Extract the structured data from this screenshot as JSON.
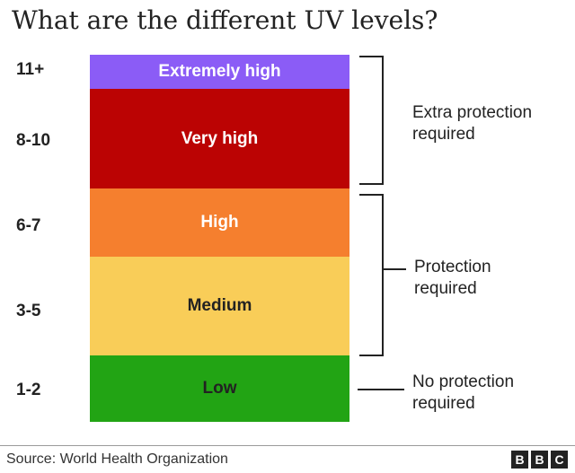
{
  "title": "What are the different UV levels?",
  "levels": [
    {
      "range": "11+",
      "label": "Extremely high",
      "color": "#8b5cf6"
    },
    {
      "range": "8-10",
      "label": "Very high",
      "color": "#bb0303"
    },
    {
      "range": "6-7",
      "label": "High",
      "color": "#f57f2e"
    },
    {
      "range": "3-5",
      "label": "Medium",
      "color": "#f9cd58"
    },
    {
      "range": "1-2",
      "label": "Low",
      "color": "#22a414"
    }
  ],
  "notes": {
    "extra": {
      "line1": "Extra protection",
      "line2": "required"
    },
    "protection": {
      "line1": "Protection",
      "line2": "required"
    },
    "none": {
      "line1": "No protection",
      "line2": "required"
    }
  },
  "source": "Source: World Health Organization",
  "logo": [
    "B",
    "B",
    "C"
  ]
}
